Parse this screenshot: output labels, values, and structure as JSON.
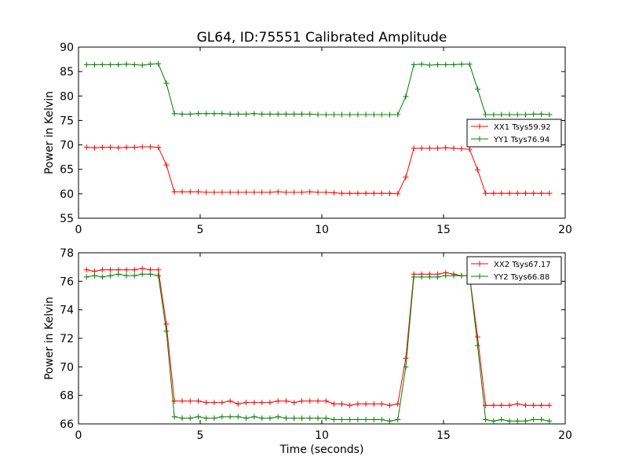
{
  "figure": {
    "title": "GL64, ID:75551 Calibrated Amplitude"
  },
  "chart_data": [
    {
      "type": "line",
      "title": "GL64, ID:75551 Calibrated Amplitude",
      "xlabel": "",
      "ylabel": "Power in Kelvin",
      "xlim": [
        0,
        20
      ],
      "ylim": [
        55,
        90
      ],
      "xticks": [
        0,
        5,
        10,
        15,
        20
      ],
      "yticks": [
        55,
        60,
        65,
        70,
        75,
        80,
        85,
        90
      ],
      "grid": false,
      "legend_position": "center-right",
      "x": [
        0.33,
        0.66,
        0.98,
        1.31,
        1.64,
        1.97,
        2.3,
        2.62,
        2.95,
        3.28,
        3.61,
        3.94,
        4.26,
        4.59,
        4.92,
        5.25,
        5.58,
        5.9,
        6.23,
        6.56,
        6.89,
        7.22,
        7.54,
        7.87,
        8.2,
        8.53,
        8.86,
        9.18,
        9.51,
        9.84,
        10.17,
        10.5,
        10.82,
        11.15,
        11.48,
        11.81,
        12.14,
        12.46,
        12.79,
        13.12,
        13.45,
        13.78,
        14.1,
        14.43,
        14.76,
        15.09,
        15.42,
        15.74,
        16.07,
        16.4,
        16.73,
        17.06,
        17.38,
        17.71,
        18.04,
        18.37,
        18.7,
        19.02,
        19.35
      ],
      "series": [
        {
          "name": "XX1 Tsys59.92",
          "color": "#ff0000",
          "values": [
            69.5,
            69.4,
            69.5,
            69.5,
            69.4,
            69.5,
            69.5,
            69.6,
            69.6,
            69.5,
            65.9,
            60.4,
            60.4,
            60.4,
            60.4,
            60.3,
            60.3,
            60.3,
            60.3,
            60.3,
            60.3,
            60.3,
            60.3,
            60.3,
            60.4,
            60.3,
            60.3,
            60.3,
            60.4,
            60.3,
            60.3,
            60.2,
            60.1,
            60.1,
            60.1,
            60.1,
            60.1,
            60.1,
            60.1,
            60.0,
            63.4,
            69.3,
            69.3,
            69.3,
            69.3,
            69.4,
            69.3,
            69.2,
            69.1,
            64.9,
            60.1,
            60.1,
            60.1,
            60.1,
            60.1,
            60.1,
            60.1,
            60.1,
            60.1
          ]
        },
        {
          "name": "YY1 Tsys76.94",
          "color": "#008000",
          "values": [
            86.4,
            86.4,
            86.4,
            86.4,
            86.4,
            86.5,
            86.4,
            86.3,
            86.5,
            86.6,
            82.6,
            76.4,
            76.3,
            76.3,
            76.4,
            76.4,
            76.4,
            76.4,
            76.3,
            76.3,
            76.3,
            76.4,
            76.3,
            76.3,
            76.3,
            76.3,
            76.3,
            76.3,
            76.3,
            76.2,
            76.2,
            76.2,
            76.2,
            76.2,
            76.2,
            76.2,
            76.2,
            76.2,
            76.2,
            76.2,
            79.9,
            86.4,
            86.5,
            86.3,
            86.4,
            86.4,
            86.4,
            86.5,
            86.5,
            81.4,
            76.2,
            76.2,
            76.2,
            76.2,
            76.2,
            76.2,
            76.3,
            76.3,
            76.2
          ]
        }
      ]
    },
    {
      "type": "line",
      "title": "",
      "xlabel": "Time (seconds)",
      "ylabel": "Power in Kelvin",
      "xlim": [
        0,
        20
      ],
      "ylim": [
        66,
        78
      ],
      "xticks": [
        0,
        5,
        10,
        15,
        20
      ],
      "yticks": [
        66,
        68,
        70,
        72,
        74,
        76,
        78
      ],
      "grid": false,
      "legend_position": "top-right",
      "x": [
        0.33,
        0.66,
        0.98,
        1.31,
        1.64,
        1.97,
        2.3,
        2.62,
        2.95,
        3.28,
        3.61,
        3.94,
        4.26,
        4.59,
        4.92,
        5.25,
        5.58,
        5.9,
        6.23,
        6.56,
        6.89,
        7.22,
        7.54,
        7.87,
        8.2,
        8.53,
        8.86,
        9.18,
        9.51,
        9.84,
        10.17,
        10.5,
        10.82,
        11.15,
        11.48,
        11.81,
        12.14,
        12.46,
        12.79,
        13.12,
        13.45,
        13.78,
        14.1,
        14.43,
        14.76,
        15.09,
        15.42,
        15.74,
        16.07,
        16.4,
        16.73,
        17.06,
        17.38,
        17.71,
        18.04,
        18.37,
        18.7,
        19.02,
        19.35
      ],
      "series": [
        {
          "name": "XX2 Tsys67.17",
          "color": "#ff0000",
          "values": [
            76.8,
            76.7,
            76.8,
            76.8,
            76.8,
            76.8,
            76.8,
            76.9,
            76.8,
            76.8,
            73.0,
            67.6,
            67.6,
            67.6,
            67.6,
            67.5,
            67.5,
            67.5,
            67.6,
            67.4,
            67.5,
            67.5,
            67.5,
            67.5,
            67.6,
            67.6,
            67.5,
            67.6,
            67.6,
            67.6,
            67.6,
            67.4,
            67.4,
            67.3,
            67.4,
            67.4,
            67.4,
            67.4,
            67.3,
            67.4,
            70.6,
            76.5,
            76.5,
            76.5,
            76.5,
            76.6,
            76.5,
            76.4,
            76.4,
            72.1,
            67.3,
            67.3,
            67.3,
            67.3,
            67.4,
            67.3,
            67.3,
            67.3,
            67.3
          ]
        },
        {
          "name": "YY2 Tsys66.88",
          "color": "#008000",
          "values": [
            76.3,
            76.4,
            76.3,
            76.4,
            76.5,
            76.4,
            76.4,
            76.5,
            76.5,
            76.4,
            72.5,
            66.5,
            66.4,
            66.4,
            66.5,
            66.4,
            66.4,
            66.5,
            66.5,
            66.5,
            66.4,
            66.5,
            66.4,
            66.4,
            66.5,
            66.4,
            66.4,
            66.4,
            66.4,
            66.4,
            66.4,
            66.3,
            66.3,
            66.3,
            66.3,
            66.3,
            66.3,
            66.3,
            66.2,
            66.3,
            70.0,
            76.3,
            76.3,
            76.3,
            76.3,
            76.4,
            76.4,
            76.4,
            76.4,
            71.5,
            66.3,
            66.2,
            66.3,
            66.2,
            66.2,
            66.2,
            66.3,
            66.3,
            66.2
          ]
        }
      ]
    }
  ]
}
